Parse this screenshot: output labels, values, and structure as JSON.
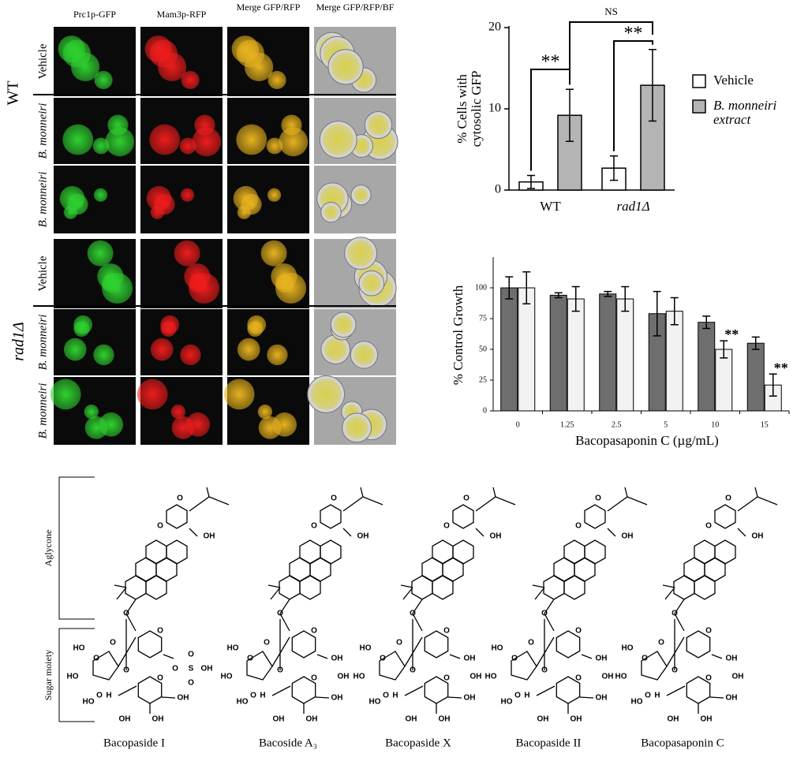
{
  "microscopy": {
    "columns": [
      "Prc1p-GFP",
      "Mam3p-RFP",
      "Merge GFP/RFP",
      "Merge GFP/RFP/BF"
    ],
    "groups": [
      {
        "label": "WT",
        "rows": [
          "Vehicle",
          "B. monneiri",
          "B. monneiri"
        ]
      },
      {
        "label": "rad1Δ",
        "rows": [
          "Vehicle",
          "B. monneiri",
          "B. monneiri"
        ]
      }
    ]
  },
  "chart_data": [
    {
      "type": "bar",
      "ylabel": [
        "% Cells with",
        "cytosolic GFP"
      ],
      "categories": [
        "WT",
        "rad1Δ"
      ],
      "series": [
        {
          "name": "Vehicle",
          "color": "#ffffff",
          "values": [
            1,
            2.7
          ],
          "errors": [
            0.8,
            1.5
          ]
        },
        {
          "name": "B. monneiri extract",
          "color": "#b4b4b4",
          "values": [
            9.2,
            12.9
          ],
          "errors": [
            3.2,
            4.4
          ]
        }
      ],
      "ylim": [
        0,
        20
      ],
      "yticks": [
        0,
        10,
        20
      ],
      "annotations": [
        "**",
        "**",
        "NS"
      ]
    },
    {
      "type": "bar",
      "xlabel": "Bacopasaponin C (µg/mL)",
      "ylabel": "% Control Growth",
      "categories": [
        "0",
        "1.25",
        "2.5",
        "5",
        "10",
        "15"
      ],
      "series": [
        {
          "color": "#6e6e6e",
          "values": [
            100,
            94,
            95,
            79,
            72,
            55
          ],
          "errors": [
            9,
            2,
            2,
            18,
            5,
            5
          ]
        },
        {
          "color": "#f2f2f2",
          "values": [
            100,
            91,
            91,
            81,
            50,
            21
          ],
          "errors": [
            13,
            10,
            10,
            11,
            7,
            9
          ],
          "significance": [
            null,
            null,
            null,
            null,
            "**",
            "**"
          ]
        }
      ],
      "ylim": [
        0,
        125
      ],
      "yticks": [
        0,
        25,
        50,
        75,
        100
      ]
    }
  ],
  "structures": {
    "regions": [
      "Aglycone",
      "Sugar moiety"
    ],
    "compounds": [
      {
        "name": "Bacopaside I",
        "atoms": [
          "O",
          "O",
          "OH",
          "O",
          "O",
          "O",
          "HO",
          "O",
          "HO",
          "O",
          "O",
          "HO",
          "O",
          "H",
          "OH",
          "OH",
          "OH",
          "O",
          "S",
          "O",
          "O",
          "OH"
        ]
      },
      {
        "name": "Bacoside A₃",
        "atoms": [
          "O",
          "O",
          "OH",
          "O",
          "O",
          "O",
          "HO",
          "O",
          "HO",
          "O",
          "O",
          "HO",
          "O",
          "H",
          "OH",
          "OH",
          "OH",
          "OH",
          "OH"
        ]
      },
      {
        "name": "Bacopaside X",
        "atoms": [
          "O",
          "O",
          "OH",
          "O",
          "O",
          "O",
          "HO",
          "O",
          "HO",
          "O",
          "O",
          "HO",
          "O",
          "H",
          "OH",
          "OH",
          "OH",
          "OH",
          "OH"
        ]
      },
      {
        "name": "Bacopaside II",
        "atoms": [
          "O",
          "O",
          "OH",
          "O",
          "O",
          "O",
          "HO",
          "O",
          "HO",
          "O",
          "O",
          "HO",
          "O",
          "H",
          "OH",
          "OH",
          "OH",
          "OH",
          "OH"
        ]
      },
      {
        "name": "Bacopasaponin C",
        "atoms": [
          "O",
          "O",
          "OH",
          "O",
          "O",
          "O",
          "HO",
          "O",
          "HO",
          "O",
          "O",
          "HO",
          "O",
          "H",
          "OH",
          "OH",
          "OH",
          "OH",
          "OH"
        ]
      }
    ]
  }
}
